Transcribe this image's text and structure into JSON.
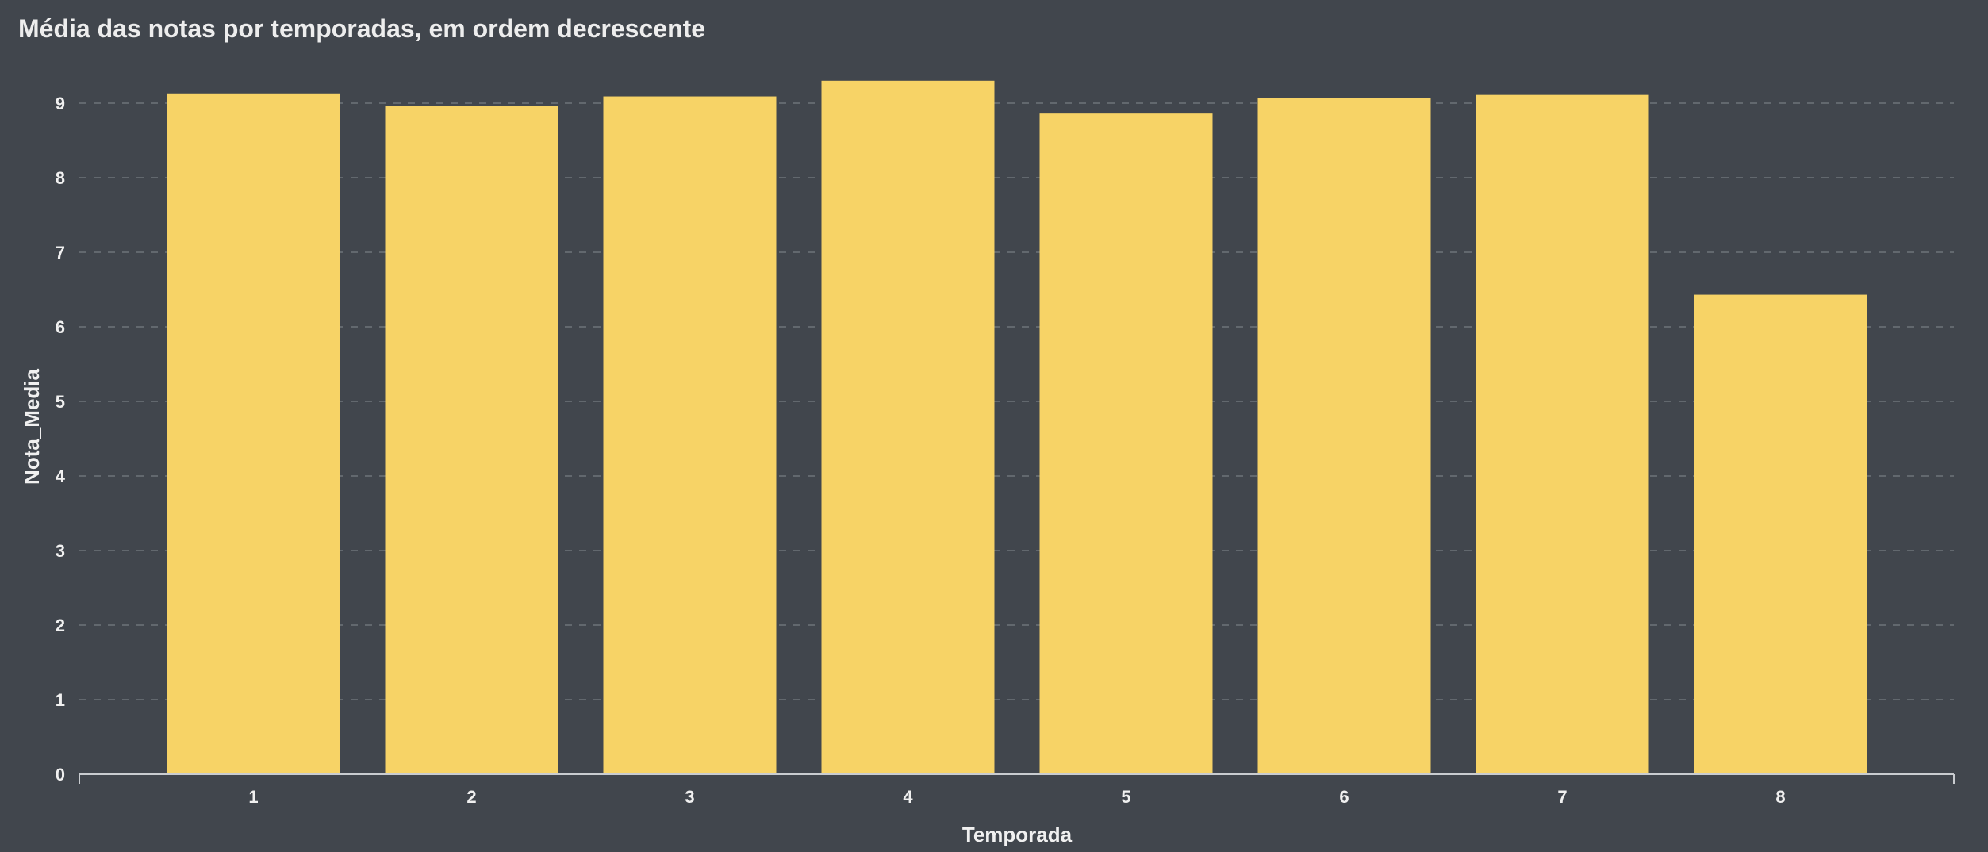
{
  "chart_data": {
    "type": "bar",
    "title": "Média das notas por temporadas, em ordem decrescente",
    "xlabel": "Temporada",
    "ylabel": "Nota_Media",
    "categories": [
      "1",
      "2",
      "3",
      "4",
      "5",
      "6",
      "7",
      "8"
    ],
    "values": [
      9.13,
      8.96,
      9.09,
      9.3,
      8.86,
      9.07,
      9.11,
      6.43
    ],
    "ylim": [
      0,
      9.6
    ],
    "yticks": [
      0,
      1,
      2,
      3,
      4,
      5,
      6,
      7,
      8,
      9
    ],
    "grid": true,
    "bar_color": "#F7D366",
    "background_color": "#41464D",
    "grid_color": "#6E737A",
    "text_color": "#F0F0F0"
  }
}
